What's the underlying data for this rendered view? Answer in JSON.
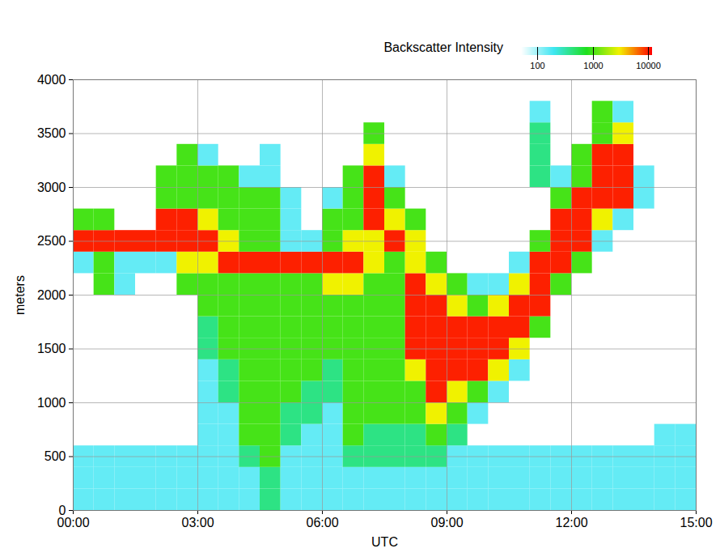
{
  "chart_data": {
    "type": "heatmap",
    "xlabel": "UTC",
    "ylabel": "meters",
    "xlim": [
      0,
      15
    ],
    "xticks": [
      {
        "value": 0,
        "label": "00:00"
      },
      {
        "value": 3,
        "label": "03:00"
      },
      {
        "value": 6,
        "label": "06:00"
      },
      {
        "value": 9,
        "label": "09:00"
      },
      {
        "value": 12,
        "label": "12:00"
      },
      {
        "value": 15,
        "label": "15:00"
      }
    ],
    "ylim": [
      0,
      4000
    ],
    "yticks": [
      0,
      500,
      1000,
      1500,
      2000,
      2500,
      3000,
      3500,
      4000
    ],
    "grid": true,
    "colorbar": {
      "title": "Backscatter Intensity",
      "log": true,
      "lim": [
        50,
        12000
      ],
      "ticks": [
        100,
        1000,
        10000
      ]
    },
    "cells": {
      "x_edges": [
        0,
        0.5,
        1,
        1.5,
        2,
        2.5,
        3,
        3.5,
        4,
        4.5,
        5,
        5.5,
        6,
        6.5,
        7,
        7.5,
        8,
        8.5,
        9,
        9.5,
        10,
        10.5,
        11,
        11.5,
        12,
        12.5,
        13,
        13.5,
        14,
        14.5,
        15
      ],
      "y_edges": [
        0,
        200,
        400,
        600,
        800,
        1000,
        1200,
        1400,
        1600,
        1800,
        2000,
        2200,
        2400,
        2600,
        2800,
        3000,
        3200,
        3400,
        3600,
        3800,
        4000
      ],
      "values": [
        [
          150,
          150,
          150,
          null,
          null,
          null,
          null,
          null,
          null,
          null,
          null,
          150,
          10000,
          1000,
          null,
          null,
          null,
          null,
          null,
          null
        ],
        [
          150,
          150,
          150,
          null,
          null,
          null,
          null,
          null,
          null,
          null,
          1000,
          1000,
          10000,
          1000,
          null,
          null,
          null,
          null,
          null,
          null
        ],
        [
          150,
          150,
          150,
          null,
          null,
          null,
          null,
          null,
          null,
          null,
          150,
          150,
          10000,
          null,
          null,
          null,
          null,
          null,
          null,
          null
        ],
        [
          150,
          150,
          150,
          null,
          null,
          null,
          null,
          null,
          null,
          null,
          null,
          150,
          10000,
          null,
          null,
          null,
          null,
          null,
          null,
          null
        ],
        [
          150,
          150,
          150,
          null,
          null,
          null,
          null,
          null,
          null,
          null,
          null,
          150,
          10000,
          10000,
          1000,
          1000,
          null,
          null,
          null,
          null
        ],
        [
          150,
          150,
          150,
          null,
          null,
          null,
          null,
          null,
          null,
          null,
          1000,
          3000,
          10000,
          10000,
          1000,
          1000,
          1000,
          null,
          null,
          null
        ],
        [
          150,
          150,
          150,
          150,
          150,
          150,
          150,
          400,
          400,
          1000,
          1000,
          3000,
          10000,
          3000,
          1000,
          1000,
          150,
          null,
          null,
          null
        ],
        [
          150,
          150,
          150,
          150,
          150,
          400,
          400,
          1000,
          1000,
          1000,
          1000,
          10000,
          3000,
          1000,
          1000,
          1000,
          null,
          null,
          null,
          null
        ],
        [
          150,
          150,
          400,
          1000,
          1000,
          1000,
          1000,
          1000,
          1000,
          1000,
          1000,
          10000,
          1000,
          1000,
          1000,
          150,
          null,
          null,
          null,
          null
        ],
        [
          400,
          400,
          1000,
          1000,
          1000,
          1000,
          1000,
          1000,
          1000,
          1000,
          1000,
          10000,
          1000,
          1000,
          1000,
          150,
          150,
          null,
          null,
          null
        ],
        [
          150,
          150,
          150,
          400,
          400,
          1000,
          1000,
          1000,
          1000,
          1000,
          1000,
          10000,
          150,
          150,
          150,
          null,
          null,
          null,
          null,
          null
        ],
        [
          150,
          150,
          150,
          150,
          400,
          400,
          1000,
          1000,
          1000,
          1000,
          1000,
          10000,
          150,
          null,
          null,
          null,
          null,
          null,
          null,
          null
        ],
        [
          150,
          150,
          150,
          150,
          150,
          400,
          400,
          1000,
          1000,
          1000,
          3000,
          10000,
          1000,
          1000,
          150,
          null,
          null,
          null,
          null,
          null
        ],
        [
          150,
          150,
          400,
          1000,
          1000,
          1000,
          1000,
          1000,
          1000,
          1000,
          3000,
          10000,
          3000,
          1000,
          1000,
          1000,
          null,
          null,
          null,
          null
        ],
        [
          150,
          150,
          400,
          400,
          1000,
          1000,
          1000,
          1000,
          1000,
          1000,
          1000,
          3000,
          3000,
          10000,
          10000,
          10000,
          3000,
          1000,
          null,
          null
        ],
        [
          150,
          150,
          400,
          400,
          1000,
          1000,
          1000,
          1000,
          1000,
          1000,
          1000,
          1000,
          10000,
          3000,
          1000,
          150,
          null,
          null,
          null,
          null
        ],
        [
          150,
          150,
          400,
          400,
          1000,
          1000,
          3000,
          10000,
          10000,
          10000,
          10000,
          3000,
          3000,
          1000,
          null,
          null,
          null,
          null,
          null,
          null
        ],
        [
          150,
          150,
          400,
          1000,
          3000,
          10000,
          10000,
          10000,
          10000,
          10000,
          3000,
          1000,
          null,
          null,
          null,
          null,
          null,
          null,
          null,
          null
        ],
        [
          150,
          150,
          150,
          400,
          1000,
          3000,
          10000,
          10000,
          10000,
          3000,
          1000,
          null,
          null,
          null,
          null,
          null,
          null,
          null,
          null,
          null
        ],
        [
          150,
          150,
          150,
          null,
          150,
          1000,
          10000,
          10000,
          10000,
          1000,
          150,
          null,
          null,
          null,
          null,
          null,
          null,
          null,
          null,
          null
        ],
        [
          150,
          150,
          150,
          null,
          null,
          150,
          3000,
          10000,
          10000,
          3000,
          150,
          null,
          null,
          null,
          null,
          null,
          null,
          null,
          null,
          null
        ],
        [
          150,
          150,
          150,
          null,
          null,
          null,
          150,
          3000,
          10000,
          10000,
          3000,
          150,
          null,
          null,
          null,
          null,
          null,
          null,
          null,
          null
        ],
        [
          150,
          150,
          150,
          null,
          null,
          null,
          null,
          null,
          1000,
          10000,
          10000,
          10000,
          1000,
          null,
          null,
          400,
          400,
          400,
          150,
          null
        ],
        [
          150,
          150,
          150,
          null,
          null,
          null,
          null,
          null,
          null,
          null,
          1000,
          10000,
          10000,
          10000,
          1000,
          150,
          null,
          null,
          null,
          null
        ],
        [
          150,
          150,
          150,
          null,
          null,
          null,
          null,
          null,
          null,
          null,
          null,
          1000,
          10000,
          10000,
          10000,
          1000,
          1000,
          null,
          null,
          null
        ],
        [
          150,
          150,
          150,
          null,
          null,
          null,
          null,
          null,
          null,
          null,
          null,
          null,
          150,
          3000,
          10000,
          10000,
          10000,
          1000,
          1000,
          null
        ],
        [
          150,
          150,
          150,
          null,
          null,
          null,
          null,
          null,
          null,
          null,
          null,
          null,
          null,
          150,
          10000,
          10000,
          10000,
          3000,
          150,
          null
        ],
        [
          150,
          150,
          150,
          null,
          null,
          null,
          null,
          null,
          null,
          null,
          null,
          null,
          null,
          null,
          150,
          150,
          null,
          null,
          null,
          null
        ],
        [
          150,
          150,
          150,
          150,
          null,
          null,
          null,
          null,
          null,
          null,
          null,
          null,
          null,
          null,
          null,
          null,
          null,
          null,
          null,
          null
        ],
        [
          150,
          150,
          150,
          150,
          null,
          null,
          null,
          null,
          null,
          null,
          null,
          null,
          null,
          null,
          null,
          null,
          null,
          null,
          null,
          null
        ]
      ]
    }
  }
}
